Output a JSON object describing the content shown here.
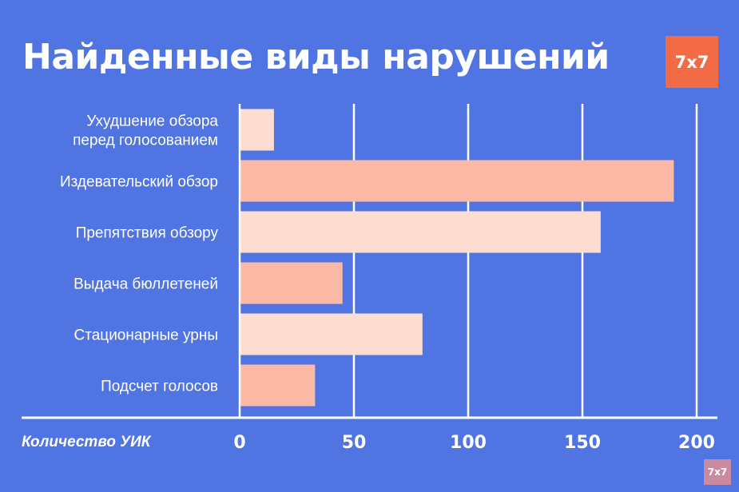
{
  "logo": {
    "badge_text": "7x7",
    "watermark_text": "7x7",
    "badge_color": "#f26b45",
    "watermark_color": "#c98aa2"
  },
  "colors": {
    "background": "#5075e3",
    "bar_dark": "#fcb9a5",
    "bar_light": "#fdddd2",
    "gridline": "#ffffff"
  },
  "chart_data": {
    "type": "bar",
    "orientation": "horizontal",
    "title": "Найденные виды нарушений",
    "xlabel": "Количество УИК",
    "ylabel": "",
    "xlim": [
      0,
      200
    ],
    "xticks": [
      0,
      50,
      100,
      150,
      200
    ],
    "grid": true,
    "categories": [
      [
        "Ухудшение обзора",
        "перед голосованием"
      ],
      [
        "Издевательский обзор"
      ],
      [
        "Препятствия обзору"
      ],
      [
        "Выдача бюллетеней"
      ],
      [
        "Стационарные урны"
      ],
      [
        "Подсчет голосов"
      ]
    ],
    "values": [
      15,
      190,
      158,
      45,
      80,
      33
    ],
    "bar_color_pattern": [
      "light",
      "dark",
      "light",
      "dark",
      "light",
      "dark"
    ]
  }
}
